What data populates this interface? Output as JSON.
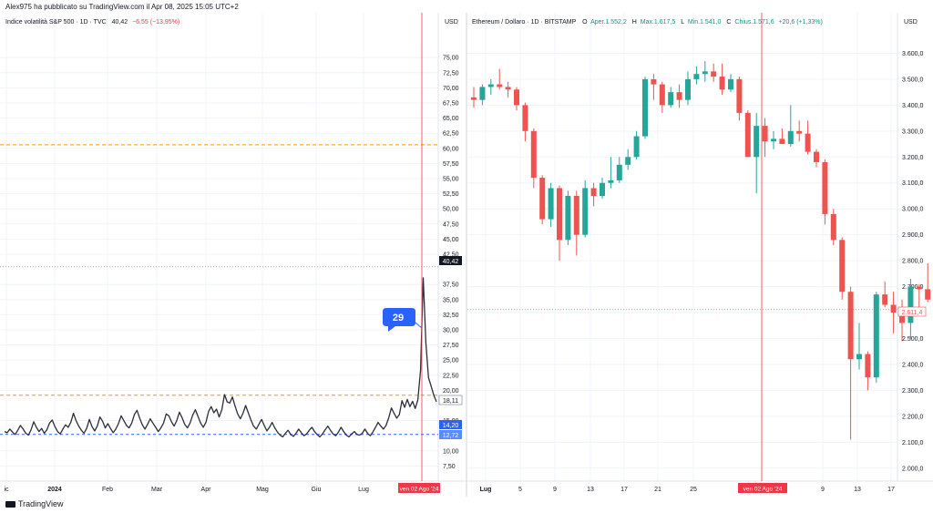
{
  "header": {
    "publisher": "Alex975 ha pubblicato su TradingView.com il Apr 08, 2025 15:05 UTC+2"
  },
  "footer": {
    "logo": "TradingView"
  },
  "colors": {
    "up": "#26a69a",
    "down": "#ef5350",
    "vix_line": "#2a2e39",
    "level": "#ff9800",
    "price_tag": "#2962ff",
    "marker": "#f23645"
  },
  "chart_data": [
    {
      "type": "line",
      "title": "Indice volatilità S&P 500 · 1D · TVC",
      "legend": {
        "last": "40,42",
        "change": "−6,55 (−13,95%)"
      },
      "currency": "USD",
      "ylim": [
        5,
        80
      ],
      "yticks": [
        "75,00",
        "72,50",
        "70,00",
        "67,50",
        "65,00",
        "62,50",
        "60,00",
        "57,50",
        "55,00",
        "52,50",
        "50,00",
        "47,50",
        "45,00",
        "42,50",
        "37,50",
        "35,00",
        "32,50",
        "30,00",
        "27,50",
        "25,00",
        "22,50",
        "20,00",
        "15,00",
        "10,00",
        "7,50"
      ],
      "xticks": [
        "ic",
        "2024",
        "Feb",
        "Mar",
        "Apr",
        "Mag",
        "Giu",
        "Lug"
      ],
      "marker_date": "ven 02 Ago '24",
      "price_labels": {
        "current": "40,42",
        "last_plotted": "18,11",
        "level_a": "14,20",
        "level_b": "12,72"
      },
      "annotation": "29",
      "horizontal_levels": [
        60.6,
        19.2,
        12.72
      ],
      "series": [
        {
          "values": [
            13.2,
            13.0,
            13.6,
            13.1,
            12.7,
            13.4,
            14.2,
            13.6,
            12.9,
            12.6,
            13.5,
            14.8,
            13.9,
            13.2,
            13.7,
            12.9,
            13.5,
            14.6,
            15.1,
            14.0,
            13.2,
            12.8,
            13.6,
            14.3,
            13.9,
            14.7,
            16.2,
            15.0,
            14.1,
            13.4,
            12.9,
            13.7,
            15.2,
            14.0,
            13.3,
            14.1,
            15.6,
            14.9,
            13.8,
            14.5,
            13.7,
            13.0,
            13.6,
            14.5,
            15.8,
            15.0,
            14.2,
            13.8,
            14.6,
            16.0,
            16.7,
            15.4,
            14.3,
            13.6,
            14.4,
            15.3,
            14.6,
            13.9,
            13.2,
            13.8,
            14.6,
            16.1,
            15.8,
            14.8,
            14.1,
            15.0,
            16.4,
            15.5,
            14.4,
            13.8,
            14.6,
            15.9,
            16.8,
            15.7,
            14.6,
            13.9,
            14.7,
            16.5,
            17.3,
            16.3,
            16.9,
            15.6,
            16.8,
            19.3,
            18.1,
            17.9,
            18.9,
            17.4,
            16.1,
            15.3,
            16.2,
            17.5,
            16.3,
            15.1,
            14.1,
            13.6,
            14.4,
            15.2,
            14.2,
            13.3,
            13.9,
            14.7,
            13.8,
            13.1,
            12.6,
            12.3,
            12.9,
            13.4,
            12.7,
            12.4,
            12.9,
            13.6,
            13.0,
            12.5,
            12.8,
            13.4,
            13.9,
            13.2,
            12.7,
            12.3,
            12.8,
            13.5,
            14.1,
            13.4,
            12.8,
            12.5,
            13.1,
            13.9,
            13.2,
            12.6,
            12.3,
            12.8,
            13.2,
            12.7,
            12.6,
            12.9,
            13.6,
            12.9,
            12.5,
            13.1,
            13.9,
            14.7,
            14.1,
            13.6,
            14.2,
            15.5,
            17.1,
            16.2,
            15.4,
            16.0,
            18.3,
            17.2,
            18.5,
            17.3,
            18.2,
            17.0,
            18.4,
            23.4,
            38.6,
            27.9,
            22.1,
            20.7,
            19.2,
            18.11
          ]
        }
      ]
    },
    {
      "type": "candlestick",
      "title": "Ethereum / Dollaro · 1D · BITSTAMP",
      "legend": {
        "o_label": "O",
        "o": "Aper.1.552,2",
        "h_label": "H",
        "h": "Max.1.617,5",
        "l_label": "L",
        "l": "Min.1.541,0",
        "c_label": "C",
        "c": "Chius.1.571,6",
        "change": "+20,6 (+1,33%)"
      },
      "currency": "USD",
      "ylim": [
        1950,
        3700
      ],
      "yticks": [
        "3.600,0",
        "3.500,0",
        "3.400,0",
        "3.300,0",
        "3.200,0",
        "3.100,0",
        "3.000,0",
        "2.900,0",
        "2.800,0",
        "2.700,0",
        "2.600,0",
        "2.500,0",
        "2.400,0",
        "2.300,0",
        "2.200,0",
        "2.100,0",
        "2.000,0"
      ],
      "xticks": [
        "Lug",
        "5",
        "9",
        "13",
        "17",
        "21",
        "25",
        "9",
        "13",
        "17"
      ],
      "marker_date": "ven 02 Ago '24",
      "price_label": "2.611,4",
      "ohlc": [
        [
          3430,
          3470,
          3390,
          3420
        ],
        [
          3420,
          3480,
          3400,
          3470
        ],
        [
          3470,
          3500,
          3440,
          3480
        ],
        [
          3480,
          3540,
          3460,
          3470
        ],
        [
          3470,
          3490,
          3430,
          3460
        ],
        [
          3460,
          3470,
          3380,
          3400
        ],
        [
          3400,
          3410,
          3260,
          3300
        ],
        [
          3300,
          3310,
          3080,
          3120
        ],
        [
          3120,
          3130,
          2940,
          2960
        ],
        [
          2960,
          3100,
          2930,
          3080
        ],
        [
          3080,
          3090,
          2800,
          2880
        ],
        [
          2880,
          3070,
          2860,
          3050
        ],
        [
          3050,
          3070,
          2820,
          2900
        ],
        [
          2900,
          3110,
          2890,
          3080
        ],
        [
          3080,
          3100,
          3010,
          3050
        ],
        [
          3050,
          3120,
          3040,
          3100
        ],
        [
          3100,
          3200,
          3080,
          3110
        ],
        [
          3110,
          3200,
          3100,
          3170
        ],
        [
          3170,
          3230,
          3150,
          3200
        ],
        [
          3200,
          3300,
          3190,
          3280
        ],
        [
          3280,
          3510,
          3270,
          3500
        ],
        [
          3500,
          3520,
          3420,
          3480
        ],
        [
          3480,
          3490,
          3370,
          3400
        ],
        [
          3400,
          3470,
          3390,
          3450
        ],
        [
          3450,
          3480,
          3390,
          3420
        ],
        [
          3420,
          3530,
          3400,
          3500
        ],
        [
          3500,
          3550,
          3480,
          3520
        ],
        [
          3520,
          3570,
          3490,
          3530
        ],
        [
          3530,
          3560,
          3490,
          3510
        ],
        [
          3510,
          3560,
          3440,
          3460
        ],
        [
          3460,
          3520,
          3450,
          3500
        ],
        [
          3500,
          3510,
          3340,
          3370
        ],
        [
          3370,
          3380,
          3200,
          3200
        ],
        [
          3200,
          3370,
          3060,
          3320
        ],
        [
          3320,
          3350,
          3200,
          3260
        ],
        [
          3260,
          3300,
          3230,
          3270
        ],
        [
          3270,
          3310,
          3250,
          3250
        ],
        [
          3250,
          3400,
          3240,
          3300
        ],
        [
          3300,
          3340,
          3260,
          3290
        ],
        [
          3290,
          3340,
          3210,
          3220
        ],
        [
          3220,
          3230,
          3160,
          3180
        ],
        [
          3180,
          3190,
          2940,
          2980
        ],
        [
          2980,
          3000,
          2860,
          2880
        ],
        [
          2880,
          2890,
          2650,
          2680
        ],
        [
          2680,
          2700,
          2110,
          2420
        ],
        [
          2420,
          2560,
          2380,
          2440
        ],
        [
          2440,
          2450,
          2300,
          2350
        ],
        [
          2350,
          2680,
          2330,
          2670
        ],
        [
          2670,
          2720,
          2620,
          2630
        ],
        [
          2630,
          2680,
          2520,
          2600
        ],
        [
          2600,
          2650,
          2490,
          2560
        ],
        [
          2560,
          2730,
          2500,
          2700
        ],
        [
          2700,
          2710,
          2610,
          2690
        ],
        [
          2690,
          2790,
          2640,
          2650
        ],
        [
          2650,
          2680,
          2540,
          2590
        ],
        [
          2590,
          2640,
          2570,
          2611.4
        ]
      ]
    }
  ]
}
